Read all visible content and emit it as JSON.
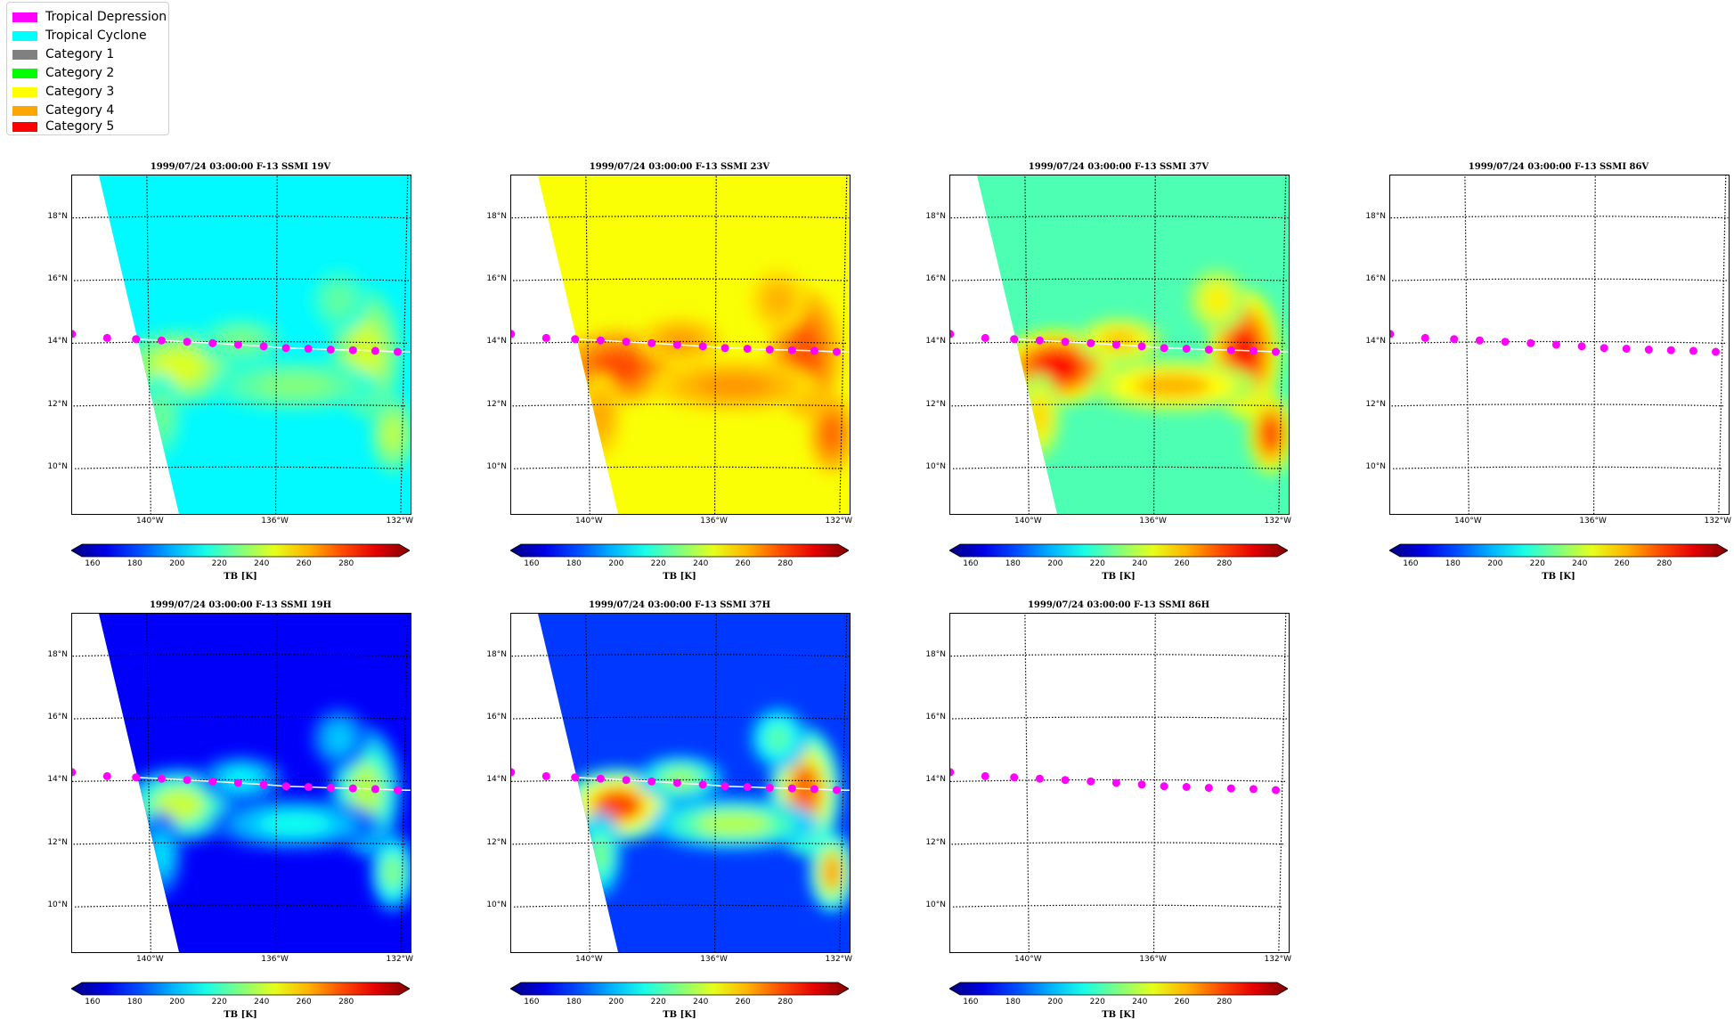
{
  "legend": {
    "items": [
      {
        "label": "Tropical Depression",
        "color": "#ff00ff"
      },
      {
        "label": "Tropical Cyclone",
        "color": "#00ffff"
      },
      {
        "label": "Category 1",
        "color": "#808080"
      },
      {
        "label": "Category 2",
        "color": "#00ff00"
      },
      {
        "label": "Category 3",
        "color": "#ffff00"
      },
      {
        "label": "Category 4",
        "color": "#ffa500"
      },
      {
        "label": "Category 5",
        "color": "#ff0000"
      }
    ]
  },
  "map": {
    "lat_ticks": [
      "18°N",
      "16°N",
      "14°N",
      "12°N",
      "10°N"
    ],
    "lat_values": [
      18,
      16,
      14,
      12,
      10
    ],
    "lon_ticks": [
      "140°W",
      "136°W",
      "132°W"
    ],
    "lon_values": [
      -140,
      -136,
      -132
    ],
    "extent": {
      "lon_min": -142.4,
      "lon_max": -131.8,
      "lat_min": 8.5,
      "lat_max": 19.3
    },
    "track": [
      {
        "lon": -142.4,
        "lat": 14.3
      },
      {
        "lon": -141.3,
        "lat": 14.15
      },
      {
        "lon": -140.4,
        "lat": 14.1
      },
      {
        "lon": -139.6,
        "lat": 14.05
      },
      {
        "lon": -138.8,
        "lat": 14.0
      },
      {
        "lon": -138.0,
        "lat": 13.95
      },
      {
        "lon": -137.2,
        "lat": 13.9
      },
      {
        "lon": -136.4,
        "lat": 13.85
      },
      {
        "lon": -135.7,
        "lat": 13.8
      },
      {
        "lon": -135.0,
        "lat": 13.78
      },
      {
        "lon": -134.3,
        "lat": 13.76
      },
      {
        "lon": -133.6,
        "lat": 13.75
      },
      {
        "lon": -132.9,
        "lat": 13.74
      },
      {
        "lon": -132.2,
        "lat": 13.72
      }
    ],
    "track_color": "#ff00ff"
  },
  "colorbar": {
    "ticks": [
      "160",
      "180",
      "200",
      "220",
      "240",
      "260",
      "280"
    ],
    "tick_values": [
      160,
      180,
      200,
      220,
      240,
      260,
      280
    ],
    "vmin": 155,
    "vmax": 305,
    "label": "TB [K]"
  },
  "panels": [
    {
      "title": "1999/07/24 03:00:00  F-13 SSMI 19V",
      "channel": "19V",
      "has_data": true
    },
    {
      "title": "1999/07/24 03:00:00  F-13 SSMI 23V",
      "channel": "23V",
      "has_data": true
    },
    {
      "title": "1999/07/24 03:00:00  F-13 SSMI 37V",
      "channel": "37V",
      "has_data": true
    },
    {
      "title": "1999/07/24 03:00:00  F-13 SSMI 86V",
      "channel": "86V",
      "has_data": false
    },
    {
      "title": "1999/07/24 03:00:00  F-13 SSMI 19H",
      "channel": "19H",
      "has_data": true
    },
    {
      "title": "1999/07/24 03:00:00  F-13 SSMI 37H",
      "channel": "37H",
      "has_data": true
    },
    {
      "title": "1999/07/24 03:00:00  F-13 SSMI 86H",
      "channel": "86H",
      "has_data": false
    }
  ]
}
